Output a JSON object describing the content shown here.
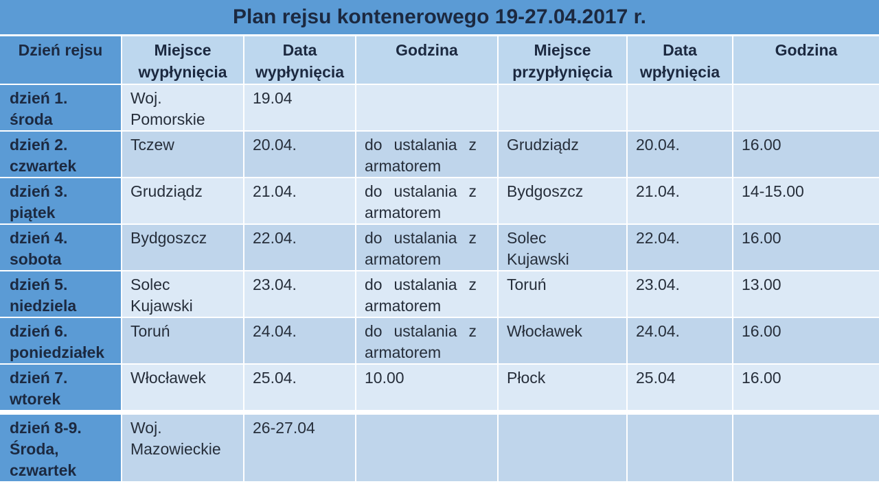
{
  "title": "Plan rejsu kontenerowego 19-27.04.2017 r.",
  "colors": {
    "accent_blue": "#5b9bd5",
    "header_row_bg": "#bdd7ee",
    "row_band_light": "#dce9f6",
    "row_band_dark": "#bfd5eb",
    "heading_text": "#1c2940",
    "cell_text": "#262e3a",
    "grid_line": "#ffffff"
  },
  "table": {
    "columns": [
      "Dzień rejsu",
      "Miejsce\nwypłynięcia",
      "Data\nwypłynięcia",
      "Godzina",
      "Miejsce\nprzypłynięcia",
      "Data\nwpłynięcia",
      "Godzina"
    ],
    "rows": [
      {
        "day": "dzień 1.\nśroda",
        "cells": [
          "Woj.\nPomorskie",
          "19.04",
          "",
          "",
          "",
          ""
        ]
      },
      {
        "day": "dzień 2.\nczwartek",
        "cells": [
          "Tczew",
          "20.04.",
          "do ustalania z armatorem",
          "Grudziądz",
          "20.04.",
          "16.00"
        ]
      },
      {
        "day": "dzień 3.\npiątek",
        "cells": [
          "Grudziądz",
          "21.04.",
          "do ustalania z armatorem",
          "Bydgoszcz",
          "21.04.",
          "14-15.00"
        ]
      },
      {
        "day": "dzień 4.\nsobota",
        "cells": [
          "Bydgoszcz",
          "22.04.",
          "do ustalania z armatorem",
          "Solec\nKujawski",
          "22.04.",
          "16.00"
        ]
      },
      {
        "day": "dzień 5.\nniedziela",
        "cells": [
          "Solec\nKujawski",
          "23.04.",
          "do ustalania z armatorem",
          "Toruń",
          "23.04.",
          "13.00"
        ]
      },
      {
        "day": "dzień 6.\nponiedziałek",
        "cells": [
          "Toruń",
          "24.04.",
          "do ustalania z armatorem",
          "Włocławek",
          "24.04.",
          "16.00"
        ]
      },
      {
        "day": "dzień 7.\nwtorek",
        "cells": [
          "Włocławek",
          "25.04.",
          "10.00",
          "Płock",
          "25.04",
          "16.00"
        ]
      },
      {
        "day": "dzień 8-9.\nŚroda,\nczwartek",
        "cells": [
          "Woj.\nMazowieckie",
          "26-27.04",
          "",
          "",
          "",
          ""
        ]
      }
    ]
  }
}
